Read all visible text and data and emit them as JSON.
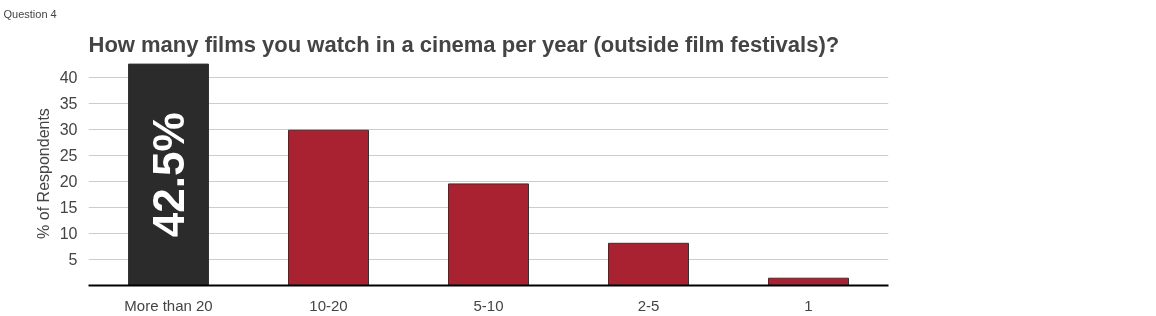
{
  "chart_data": {
    "type": "bar",
    "title": "How many films you watch in a cinema per year (outside film festivals)?",
    "ylabel": "% of Respondents",
    "annotations": [
      "Question 4"
    ],
    "categories": [
      "More than 20",
      "10-20",
      "5-10",
      "2-5",
      "1"
    ],
    "values": [
      42.5,
      29.8,
      19.5,
      8.1,
      1.4
    ],
    "colors": [
      "#2b2b2b",
      "#a82232",
      "#a82232",
      "#a82232",
      "#a82232"
    ],
    "value_labels": [
      "42.5%",
      null,
      null,
      null,
      null
    ],
    "ylim": [
      0,
      43
    ],
    "yticks": [
      5,
      10,
      15,
      20,
      25,
      30,
      35,
      40
    ],
    "grid": "y"
  }
}
